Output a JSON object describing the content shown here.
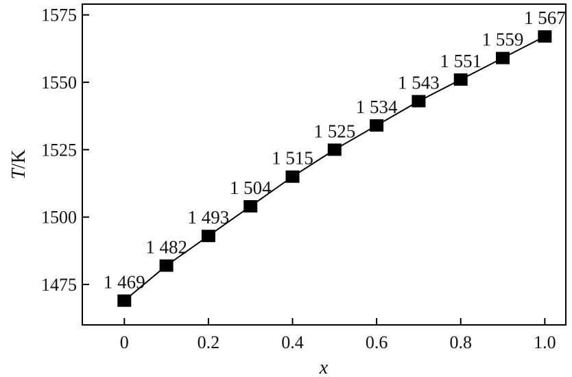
{
  "chart_data": {
    "type": "line",
    "xlabel_var": "x",
    "ylabel_var": "T",
    "ylabel_unit": "/K",
    "x": [
      0,
      0.1,
      0.2,
      0.3,
      0.4,
      0.5,
      0.6,
      0.7,
      0.8,
      0.9,
      1.0
    ],
    "series": [
      {
        "values": [
          1469,
          1482,
          1493,
          1504,
          1515,
          1525,
          1534,
          1543,
          1551,
          1559,
          1567
        ],
        "data_labels": [
          "1 469",
          "1 482",
          "1 493",
          "1 504",
          "1 515",
          "1 525",
          "1 534",
          "1 543",
          "1 551",
          "1 559",
          "1 567"
        ],
        "marker": "square",
        "color": "#000000"
      }
    ],
    "x_ticks": [
      0,
      0.2,
      0.4,
      0.6,
      0.8,
      1.0
    ],
    "x_tick_labels": [
      "0",
      "0.2",
      "0.4",
      "0.6",
      "0.8",
      "1.0"
    ],
    "y_ticks": [
      1475,
      1500,
      1525,
      1550,
      1575
    ],
    "y_tick_labels": [
      "1475",
      "1500",
      "1525",
      "1550",
      "1575"
    ],
    "xlim": [
      -0.1,
      1.05
    ],
    "ylim": [
      1460,
      1579
    ],
    "grid": false,
    "legend": "none"
  }
}
